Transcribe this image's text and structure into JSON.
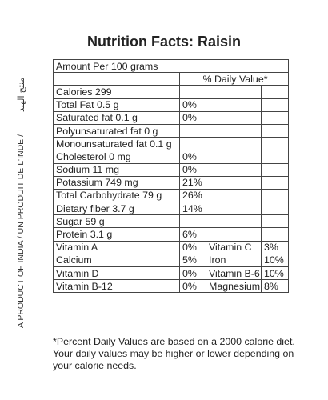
{
  "title": "Nutrition Facts: Raisin",
  "side_text": "A PRODUCT OF INDIA / UN PRODUIT DE L'INDE /",
  "side_arabic": "منتج الهند",
  "amount_per": "Amount Per 100 grams",
  "daily_value_header": "% Daily Value*",
  "nutrients": [
    {
      "label": "Calories 299",
      "dv": ""
    },
    {
      "label": "Total Fat 0.5 g",
      "dv": "0%"
    },
    {
      "label": "Saturated fat 0.1 g",
      "dv": "0%"
    },
    {
      "label": "Polyunsaturated fat 0 g",
      "dv": ""
    },
    {
      "label": "Monounsaturated fat 0.1 g",
      "dv": ""
    },
    {
      "label": "Cholesterol 0 mg",
      "dv": "0%"
    },
    {
      "label": "Sodium 11 mg",
      "dv": "0%"
    },
    {
      "label": "Potassium 749 mg",
      "dv": "21%"
    },
    {
      "label": "Total Carbohydrate 79 g",
      "dv": "26%"
    },
    {
      "label": "Dietary fiber 3.7 g",
      "dv": "14%"
    },
    {
      "label": "Sugar 59 g",
      "dv": ""
    },
    {
      "label": "Protein 3.1 g",
      "dv": "6%"
    }
  ],
  "vitamins": [
    {
      "left_label": "Vitamin A",
      "left_dv": "0%",
      "right_label": "Vitamin C",
      "right_dv": "3%"
    },
    {
      "left_label": "Calcium",
      "left_dv": "5%",
      "right_label": "Iron",
      "right_dv": "10%"
    },
    {
      "left_label": "Vitamin D",
      "left_dv": "0%",
      "right_label": "Vitamin B-6",
      "right_dv": "10%"
    },
    {
      "left_label": "Vitamin B-12",
      "left_dv": "0%",
      "right_label": "Magnesium",
      "right_dv": "8%"
    }
  ],
  "footnote": {
    "line1": "*Percent Daily Values are based on a 2000 calorie diet.",
    "line2": "Your daily values may be higher or lower depending on",
    "line3": "your calorie needs."
  }
}
